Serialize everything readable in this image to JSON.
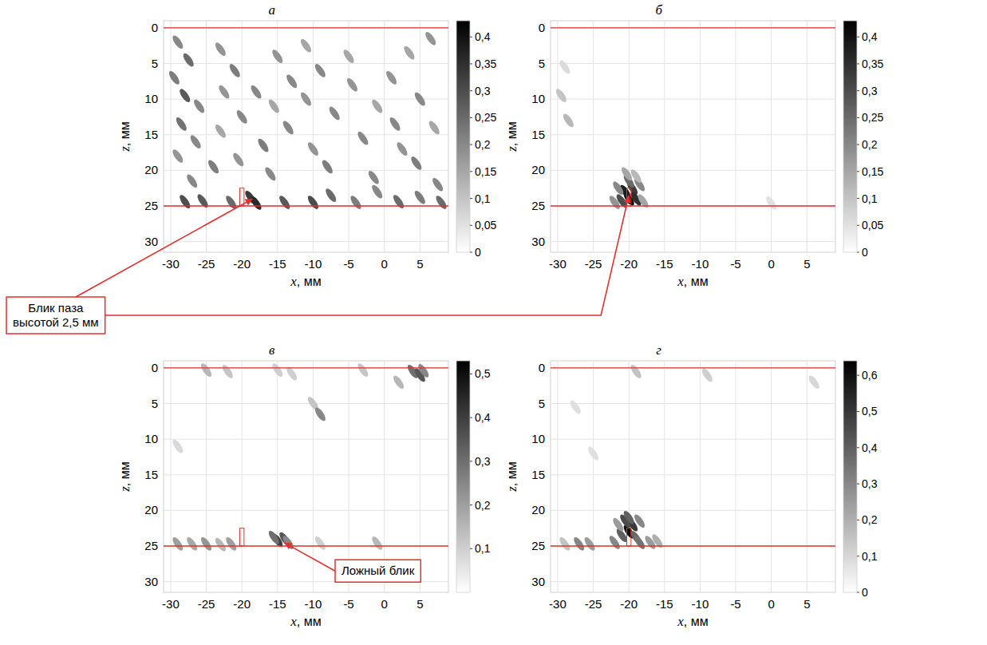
{
  "chart_data": [
    {
      "type": "heatmap",
      "title": "а",
      "xlabel": "x, мм",
      "ylabel": "z, мм",
      "xlim": [
        -31,
        9
      ],
      "ylim": [
        31.5,
        -1
      ],
      "xticks": [
        -30,
        -25,
        -20,
        -15,
        -10,
        -5,
        0,
        5
      ],
      "yticks": [
        0,
        5,
        10,
        15,
        20,
        25,
        30
      ],
      "grid": true,
      "boundaries": [
        0,
        25
      ],
      "notch": {
        "x": [
          -20.3,
          -19.7
        ],
        "z": [
          22.5,
          25
        ]
      },
      "colorbar": {
        "range": [
          0,
          0.43
        ],
        "ticks": [
          0,
          {
            "value": 0.05,
            "label": "0,05"
          },
          {
            "value": 0.1,
            "label": "0,1"
          },
          {
            "value": 0.15,
            "label": "0,15"
          },
          {
            "value": 0.2,
            "label": "0,2"
          },
          {
            "value": 0.25,
            "label": "0,25"
          },
          {
            "value": 0.3,
            "label": "0,3"
          },
          {
            "value": 0.35,
            "label": "0,35"
          },
          {
            "value": 0.4,
            "label": "0,4"
          }
        ]
      },
      "cells": [
        [
          -29,
          2,
          0.2
        ],
        [
          -27.5,
          4.5,
          0.25
        ],
        [
          -29.5,
          7,
          0.22
        ],
        [
          -28,
          9.5,
          0.28
        ],
        [
          -26,
          11,
          0.2
        ],
        [
          -28.5,
          13.5,
          0.24
        ],
        [
          -26.5,
          16,
          0.2
        ],
        [
          -29,
          18,
          0.18
        ],
        [
          -24,
          19.5,
          0.22
        ],
        [
          -27,
          21.5,
          0.2
        ],
        [
          -23,
          3,
          0.18
        ],
        [
          -21,
          6,
          0.22
        ],
        [
          -22.5,
          9,
          0.18
        ],
        [
          -20,
          12.5,
          0.2
        ],
        [
          -23,
          14.5,
          0.15
        ],
        [
          -18,
          9,
          0.2
        ],
        [
          -17,
          16.5,
          0.22
        ],
        [
          -20.5,
          18.5,
          0.18
        ],
        [
          -15,
          4,
          0.18
        ],
        [
          -13,
          7.5,
          0.2
        ],
        [
          -15.5,
          11,
          0.15
        ],
        [
          -13.5,
          14,
          0.2
        ],
        [
          -16,
          20.5,
          0.2
        ],
        [
          -11,
          2.5,
          0.15
        ],
        [
          -9,
          6,
          0.2
        ],
        [
          -11,
          10,
          0.18
        ],
        [
          -10,
          17,
          0.18
        ],
        [
          -8,
          19.5,
          0.22
        ],
        [
          -7,
          12,
          0.2
        ],
        [
          -5,
          4,
          0.15
        ],
        [
          -4.5,
          8,
          0.18
        ],
        [
          -3,
          15.5,
          0.2
        ],
        [
          -1.5,
          21,
          0.2
        ],
        [
          -1,
          11,
          0.15
        ],
        [
          1,
          7,
          0.18
        ],
        [
          1.5,
          13.5,
          0.2
        ],
        [
          2.5,
          17,
          0.18
        ],
        [
          3.5,
          3.5,
          0.15
        ],
        [
          5,
          10,
          0.2
        ],
        [
          4.5,
          19,
          0.22
        ],
        [
          6.5,
          1.5,
          0.18
        ],
        [
          7,
          14,
          0.15
        ],
        [
          7.5,
          22,
          0.2
        ],
        [
          -28,
          24.4,
          0.3
        ],
        [
          -25.5,
          24.3,
          0.28
        ],
        [
          -21.5,
          24.5,
          0.25
        ],
        [
          -18.8,
          23.8,
          0.33
        ],
        [
          -18,
          24.6,
          0.36
        ],
        [
          -14,
          24.5,
          0.28
        ],
        [
          -10,
          24.5,
          0.3
        ],
        [
          -7.5,
          23.5,
          0.25
        ],
        [
          -4,
          24.5,
          0.22
        ],
        [
          -1,
          23,
          0.2
        ],
        [
          2,
          24.4,
          0.25
        ],
        [
          5,
          23.8,
          0.22
        ],
        [
          8,
          24.5,
          0.25
        ]
      ]
    },
    {
      "type": "heatmap",
      "title": "б",
      "xlabel": "x, мм",
      "ylabel": "z, мм",
      "xlim": [
        -31,
        9
      ],
      "ylim": [
        31.5,
        -1
      ],
      "xticks": [
        -30,
        -25,
        -20,
        -15,
        -10,
        -5,
        0,
        5
      ],
      "yticks": [
        0,
        5,
        10,
        15,
        20,
        25,
        30
      ],
      "grid": true,
      "boundaries": [
        0,
        25
      ],
      "notch": {
        "x": [
          -20.3,
          -19.7
        ],
        "z": [
          22.5,
          25
        ]
      },
      "colorbar": {
        "range": [
          0,
          0.43
        ],
        "ticks": [
          0,
          {
            "value": 0.05,
            "label": "0,05"
          },
          {
            "value": 0.1,
            "label": "0,1"
          },
          {
            "value": 0.15,
            "label": "0,15"
          },
          {
            "value": 0.2,
            "label": "0,2"
          },
          {
            "value": 0.25,
            "label": "0,25"
          },
          {
            "value": 0.3,
            "label": "0,3"
          },
          {
            "value": 0.35,
            "label": "0,35"
          },
          {
            "value": 0.4,
            "label": "0,4"
          }
        ]
      },
      "cells": [
        [
          -28.5,
          13,
          0.12
        ],
        [
          -29.5,
          9.5,
          0.1
        ],
        [
          -29,
          5.5,
          0.06
        ],
        [
          -20,
          24,
          0.42
        ],
        [
          -20.5,
          23,
          0.38
        ],
        [
          -19.5,
          22.5,
          0.33
        ],
        [
          -21,
          24.3,
          0.3
        ],
        [
          -19,
          24,
          0.35
        ],
        [
          -20,
          21.5,
          0.25
        ],
        [
          -21.5,
          22.5,
          0.2
        ],
        [
          -18.5,
          22,
          0.2
        ],
        [
          -20.3,
          20.5,
          0.15
        ],
        [
          -19,
          20.8,
          0.12
        ],
        [
          -22,
          24.5,
          0.18
        ],
        [
          -18,
          24.3,
          0.15
        ],
        [
          0,
          24.6,
          0.05
        ]
      ]
    },
    {
      "type": "heatmap",
      "title": "в",
      "xlabel": "x, мм",
      "ylabel": "z, мм",
      "xlim": [
        -31,
        9
      ],
      "ylim": [
        31.5,
        -1
      ],
      "xticks": [
        -30,
        -25,
        -20,
        -15,
        -10,
        -5,
        0,
        5
      ],
      "yticks": [
        0,
        5,
        10,
        15,
        20,
        25,
        30
      ],
      "grid": true,
      "boundaries": [
        0,
        25
      ],
      "notch": {
        "x": [
          -20.3,
          -19.7
        ],
        "z": [
          22.5,
          25
        ]
      },
      "colorbar": {
        "range": [
          0,
          0.53
        ],
        "ticks": [
          {
            "value": 0.1,
            "label": "0,1"
          },
          {
            "value": 0.2,
            "label": "0,2"
          },
          {
            "value": 0.3,
            "label": "0,3"
          },
          {
            "value": 0.4,
            "label": "0,4"
          },
          {
            "value": 0.5,
            "label": "0,5"
          }
        ]
      },
      "cells": [
        [
          -25,
          0.3,
          0.15
        ],
        [
          -22,
          0.5,
          0.12
        ],
        [
          -15,
          0.3,
          0.1
        ],
        [
          -13,
          0.8,
          0.1
        ],
        [
          -3,
          0.3,
          0.12
        ],
        [
          4,
          0.5,
          0.3
        ],
        [
          5,
          1,
          0.35
        ],
        [
          5.5,
          0.4,
          0.25
        ],
        [
          2,
          2,
          0.15
        ],
        [
          -10,
          5,
          0.12
        ],
        [
          -9,
          6.5,
          0.25
        ],
        [
          -29,
          11,
          0.08
        ],
        [
          -29,
          24.7,
          0.2
        ],
        [
          -27,
          24.7,
          0.18
        ],
        [
          -25,
          24.7,
          0.22
        ],
        [
          -23,
          24.8,
          0.15
        ],
        [
          -21.5,
          24.7,
          0.2
        ],
        [
          -15,
          24.2,
          0.4
        ],
        [
          -14,
          24,
          0.35
        ],
        [
          -15.5,
          23.8,
          0.3
        ],
        [
          -13.5,
          24.5,
          0.25
        ],
        [
          -9,
          24.6,
          0.1
        ],
        [
          -1,
          24.6,
          0.15
        ]
      ]
    },
    {
      "type": "heatmap",
      "title": "г",
      "xlabel": "x, мм",
      "ylabel": "z, мм",
      "xlim": [
        -31,
        9
      ],
      "ylim": [
        31.5,
        -1
      ],
      "xticks": [
        -30,
        -25,
        -20,
        -15,
        -10,
        -5,
        0,
        5
      ],
      "yticks": [
        0,
        5,
        10,
        15,
        20,
        25,
        30
      ],
      "grid": true,
      "boundaries": [
        0,
        25
      ],
      "notch": {
        "x": [
          -20.3,
          -19.7
        ],
        "z": [
          22.5,
          25
        ]
      },
      "colorbar": {
        "range": [
          0,
          0.64
        ],
        "ticks": [
          0,
          {
            "value": 0.1,
            "label": "0,1"
          },
          {
            "value": 0.2,
            "label": "0,2"
          },
          {
            "value": 0.3,
            "label": "0,3"
          },
          {
            "value": 0.4,
            "label": "0,4"
          },
          {
            "value": 0.5,
            "label": "0,5"
          },
          {
            "value": 0.6,
            "label": "0,6"
          }
        ]
      },
      "cells": [
        [
          -19,
          0.5,
          0.15
        ],
        [
          -9,
          1,
          0.12
        ],
        [
          6,
          2,
          0.1
        ],
        [
          -27.5,
          5.5,
          0.08
        ],
        [
          -25,
          12,
          0.08
        ],
        [
          -20,
          23,
          0.6
        ],
        [
          -19.5,
          22,
          0.5
        ],
        [
          -20.5,
          21.5,
          0.45
        ],
        [
          -20,
          21,
          0.4
        ],
        [
          -21,
          23.5,
          0.4
        ],
        [
          -19,
          23.8,
          0.38
        ],
        [
          -18.5,
          24.5,
          0.35
        ],
        [
          -22,
          24.5,
          0.3
        ],
        [
          -17,
          24.5,
          0.25
        ],
        [
          -16,
          24.3,
          0.2
        ],
        [
          -21.5,
          22,
          0.25
        ],
        [
          -18.5,
          21.5,
          0.3
        ],
        [
          -27,
          24.7,
          0.3
        ],
        [
          -25.5,
          24.7,
          0.25
        ],
        [
          -29,
          24.7,
          0.15
        ]
      ]
    }
  ],
  "annotations": [
    {
      "text": "Блик паза высотой 2,5 мм",
      "targets": [
        {
          "panel": "а",
          "x": -18.5,
          "z": 24
        },
        {
          "panel": "б",
          "x": -20,
          "z": 23.5
        }
      ]
    },
    {
      "text": "Ложный блик",
      "targets": [
        {
          "panel": "в",
          "x": -14.5,
          "z": 24.2
        }
      ]
    }
  ]
}
